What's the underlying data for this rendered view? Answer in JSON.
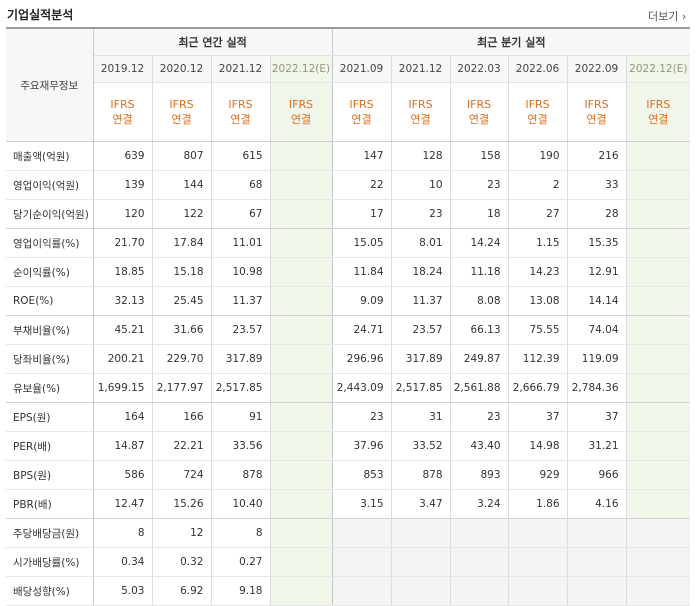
{
  "header": {
    "title": "기업실적분석",
    "more_label": "더보기"
  },
  "table": {
    "corner_label": "주요재무정보",
    "annual_group": "최근 연간 실적",
    "quarter_group": "최근 분기 실적",
    "annual_periods": [
      "2019.12",
      "2020.12",
      "2021.12",
      "2022.12(E)"
    ],
    "quarter_periods": [
      "2021.09",
      "2021.12",
      "2022.03",
      "2022.06",
      "2022.09",
      "2022.12(E)"
    ],
    "standard_line1": "IFRS",
    "standard_line2": "연결",
    "rows": [
      {
        "label": "매출액(억원)",
        "annual": [
          "639",
          "807",
          "615",
          ""
        ],
        "quarter": [
          "147",
          "128",
          "158",
          "190",
          "216",
          ""
        ]
      },
      {
        "label": "영업이익(억원)",
        "annual": [
          "139",
          "144",
          "68",
          ""
        ],
        "quarter": [
          "22",
          "10",
          "23",
          "2",
          "33",
          ""
        ]
      },
      {
        "label": "당기순이익(억원)",
        "annual": [
          "120",
          "122",
          "67",
          ""
        ],
        "quarter": [
          "17",
          "23",
          "18",
          "27",
          "28",
          ""
        ]
      },
      {
        "label": "영업이익률(%)",
        "annual": [
          "21.70",
          "17.84",
          "11.01",
          ""
        ],
        "quarter": [
          "15.05",
          "8.01",
          "14.24",
          "1.15",
          "15.35",
          ""
        ]
      },
      {
        "label": "순이익률(%)",
        "annual": [
          "18.85",
          "15.18",
          "10.98",
          ""
        ],
        "quarter": [
          "11.84",
          "18.24",
          "11.18",
          "14.23",
          "12.91",
          ""
        ]
      },
      {
        "label": "ROE(%)",
        "annual": [
          "32.13",
          "25.45",
          "11.37",
          ""
        ],
        "quarter": [
          "9.09",
          "11.37",
          "8.08",
          "13.08",
          "14.14",
          ""
        ]
      },
      {
        "label": "부채비율(%)",
        "annual": [
          "45.21",
          "31.66",
          "23.57",
          ""
        ],
        "quarter": [
          "24.71",
          "23.57",
          "66.13",
          "75.55",
          "74.04",
          ""
        ]
      },
      {
        "label": "당좌비율(%)",
        "annual": [
          "200.21",
          "229.70",
          "317.89",
          ""
        ],
        "quarter": [
          "296.96",
          "317.89",
          "249.87",
          "112.39",
          "119.09",
          ""
        ]
      },
      {
        "label": "유보율(%)",
        "annual": [
          "1,699.15",
          "2,177.97",
          "2,517.85",
          ""
        ],
        "quarter": [
          "2,443.09",
          "2,517.85",
          "2,561.88",
          "2,666.79",
          "2,784.36",
          ""
        ]
      },
      {
        "label": "EPS(원)",
        "annual": [
          "164",
          "166",
          "91",
          ""
        ],
        "quarter": [
          "23",
          "31",
          "23",
          "37",
          "37",
          ""
        ]
      },
      {
        "label": "PER(배)",
        "annual": [
          "14.87",
          "22.21",
          "33.56",
          ""
        ],
        "quarter": [
          "37.96",
          "33.52",
          "43.40",
          "14.98",
          "31.21",
          ""
        ]
      },
      {
        "label": "BPS(원)",
        "annual": [
          "586",
          "724",
          "878",
          ""
        ],
        "quarter": [
          "853",
          "878",
          "893",
          "929",
          "966",
          ""
        ]
      },
      {
        "label": "PBR(배)",
        "annual": [
          "12.47",
          "15.26",
          "10.40",
          ""
        ],
        "quarter": [
          "3.15",
          "3.47",
          "3.24",
          "1.86",
          "4.16",
          ""
        ]
      },
      {
        "label": "주당배당금(원)",
        "annual": [
          "8",
          "12",
          "8",
          ""
        ],
        "quarter": null
      },
      {
        "label": "시가배당률(%)",
        "annual": [
          "0.34",
          "0.32",
          "0.27",
          ""
        ],
        "quarter": null
      },
      {
        "label": "배당성향(%)",
        "annual": [
          "5.03",
          "6.92",
          "9.18",
          ""
        ],
        "quarter": null
      }
    ]
  }
}
